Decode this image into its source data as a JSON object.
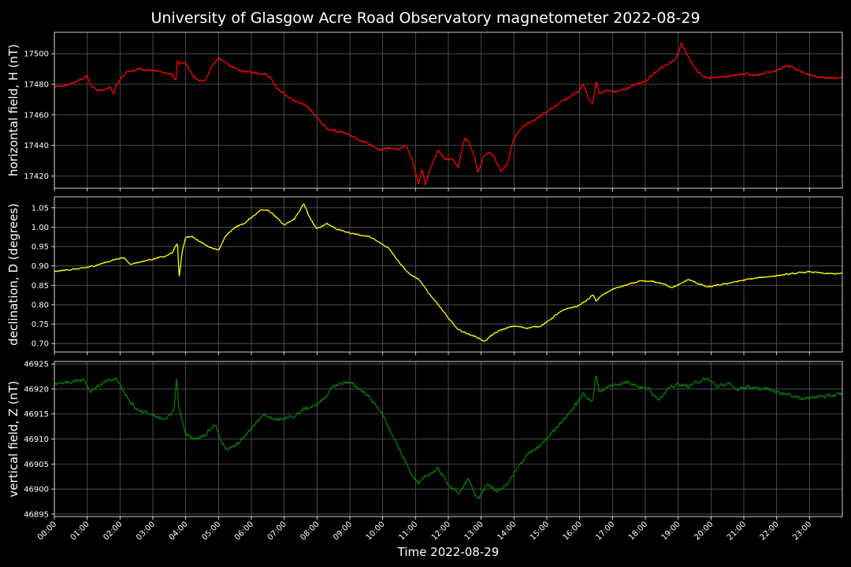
{
  "chart_data": {
    "type": "line",
    "title": "University of Glasgow Acre Road Observatory magnetometer 2022-08-29",
    "xlabel": "Time 2022-08-29",
    "x_ticks": [
      "00:00",
      "01:00",
      "02:00",
      "03:00",
      "04:00",
      "05:00",
      "06:00",
      "07:00",
      "08:00",
      "09:00",
      "10:00",
      "11:00",
      "12:00",
      "13:00",
      "14:00",
      "15:00",
      "16:00",
      "17:00",
      "18:00",
      "19:00",
      "20:00",
      "21:00",
      "22:00",
      "23:00"
    ],
    "xlim_hours": [
      0,
      24
    ],
    "grid": true,
    "panels": [
      {
        "name": "H",
        "ylabel": "horizontal field, H (nT)",
        "color": "#ff0000",
        "ylim": [
          17412,
          17514
        ],
        "yticks": [
          17420,
          17440,
          17460,
          17480,
          17500
        ],
        "tick_labels": [
          "17420",
          "17440",
          "17460",
          "17480",
          "17500"
        ],
        "noise": 1.2,
        "x": [
          0,
          0.3,
          0.6,
          0.9,
          1.0,
          1.1,
          1.3,
          1.5,
          1.7,
          1.8,
          1.9,
          2.2,
          2.6,
          3.0,
          3.3,
          3.6,
          3.7,
          3.75,
          3.8,
          4.0,
          4.2,
          4.4,
          4.6,
          4.8,
          5.0,
          5.3,
          5.6,
          6.0,
          6.4,
          6.6,
          6.8,
          7.1,
          7.4,
          7.7,
          8.0,
          8.3,
          8.7,
          9.0,
          9.3,
          9.6,
          9.9,
          10.2,
          10.5,
          10.7,
          10.9,
          11.1,
          11.2,
          11.3,
          11.5,
          11.7,
          11.9,
          12.1,
          12.3,
          12.5,
          12.6,
          12.8,
          12.9,
          13.1,
          13.3,
          13.4,
          13.6,
          13.8,
          14.0,
          14.3,
          14.6,
          14.9,
          15.2,
          15.5,
          15.8,
          16.0,
          16.1,
          16.3,
          16.4,
          16.5,
          16.6,
          16.8,
          17.1,
          17.4,
          17.7,
          18.0,
          18.3,
          18.6,
          18.9,
          19.0,
          19.1,
          19.3,
          19.6,
          19.9,
          20.2,
          20.5,
          20.8,
          21.1,
          21.4,
          21.7,
          22.0,
          22.3,
          22.6,
          22.9,
          23.2,
          23.6,
          24.0
        ],
        "values": [
          17478,
          17479,
          17481,
          17484,
          17486,
          17480,
          17476,
          17476,
          17478,
          17474,
          17480,
          17488,
          17490,
          17489,
          17488,
          17486,
          17482,
          17496,
          17493,
          17494,
          17486,
          17482,
          17483,
          17492,
          17497,
          17493,
          17489,
          17488,
          17487,
          17484,
          17477,
          17472,
          17468,
          17466,
          17458,
          17451,
          17449,
          17447,
          17443,
          17441,
          17437,
          17438,
          17437,
          17440,
          17431,
          17414,
          17425,
          17414,
          17428,
          17437,
          17430,
          17432,
          17426,
          17445,
          17443,
          17433,
          17422,
          17434,
          17435,
          17433,
          17423,
          17428,
          17445,
          17453,
          17456,
          17461,
          17465,
          17469,
          17473,
          17476,
          17480,
          17470,
          17467,
          17482,
          17474,
          17476,
          17475,
          17477,
          17480,
          17482,
          17488,
          17492,
          17496,
          17500,
          17507,
          17498,
          17488,
          17484,
          17485,
          17485,
          17486,
          17487,
          17486,
          17488,
          17489,
          17492,
          17490,
          17487,
          17485,
          17484,
          17484
        ]
      },
      {
        "name": "D",
        "ylabel": "declination, D (degrees)",
        "color": "#ffff00",
        "ylim": [
          0.678,
          1.078
        ],
        "yticks": [
          0.7,
          0.75,
          0.8,
          0.85,
          0.9,
          0.95,
          1.0,
          1.05
        ],
        "tick_labels": [
          "0.70",
          "0.75",
          "0.80",
          "0.85",
          "0.90",
          "0.95",
          "1.00",
          "1.05"
        ],
        "noise": 0.003,
        "x": [
          0,
          0.4,
          0.8,
          1.2,
          1.6,
          1.9,
          2.1,
          2.3,
          2.6,
          3.0,
          3.4,
          3.6,
          3.75,
          3.8,
          3.9,
          4.0,
          4.2,
          4.5,
          4.8,
          5.0,
          5.2,
          5.5,
          5.8,
          6.0,
          6.3,
          6.5,
          6.7,
          7.0,
          7.3,
          7.6,
          7.8,
          8.0,
          8.3,
          8.6,
          9.0,
          9.3,
          9.6,
          9.9,
          10.2,
          10.5,
          10.8,
          11.1,
          11.4,
          11.7,
          12.0,
          12.3,
          12.6,
          12.9,
          13.1,
          13.3,
          13.6,
          14.0,
          14.4,
          14.8,
          15.0,
          15.3,
          15.6,
          15.9,
          16.2,
          16.4,
          16.5,
          16.7,
          17.0,
          17.4,
          17.8,
          18.2,
          18.5,
          18.8,
          19.0,
          19.3,
          19.6,
          19.9,
          20.2,
          20.5,
          20.8,
          21.1,
          21.5,
          22.0,
          22.5,
          23.0,
          23.5,
          24.0
        ],
        "values": [
          0.885,
          0.89,
          0.893,
          0.9,
          0.91,
          0.918,
          0.922,
          0.905,
          0.91,
          0.918,
          0.925,
          0.935,
          0.96,
          0.87,
          0.94,
          0.975,
          0.975,
          0.96,
          0.945,
          0.94,
          0.975,
          1.0,
          1.01,
          1.025,
          1.045,
          1.045,
          1.03,
          1.005,
          1.02,
          1.06,
          1.02,
          0.995,
          1.01,
          0.995,
          0.985,
          0.98,
          0.975,
          0.96,
          0.945,
          0.91,
          0.88,
          0.865,
          0.83,
          0.8,
          0.765,
          0.735,
          0.725,
          0.715,
          0.705,
          0.72,
          0.735,
          0.745,
          0.74,
          0.745,
          0.755,
          0.775,
          0.79,
          0.795,
          0.81,
          0.825,
          0.81,
          0.825,
          0.84,
          0.85,
          0.86,
          0.86,
          0.855,
          0.845,
          0.85,
          0.865,
          0.855,
          0.845,
          0.85,
          0.855,
          0.86,
          0.865,
          0.87,
          0.875,
          0.88,
          0.885,
          0.88,
          0.88
        ]
      },
      {
        "name": "Z",
        "ylabel": "vertical field, Z (nT)",
        "color": "#008000",
        "ylim": [
          46894.5,
          46925.5
        ],
        "yticks": [
          46895,
          46900,
          46905,
          46910,
          46915,
          46920,
          46925
        ],
        "tick_labels": [
          "46895",
          "46900",
          "46905",
          "46910",
          "46915",
          "46920",
          "46925"
        ],
        "noise": 0.6,
        "x": [
          0,
          0.5,
          0.9,
          1.1,
          1.3,
          1.6,
          1.9,
          2.2,
          2.5,
          2.9,
          3.2,
          3.5,
          3.65,
          3.72,
          3.8,
          4.0,
          4.3,
          4.6,
          4.9,
          5.1,
          5.3,
          5.5,
          5.8,
          6.1,
          6.4,
          6.7,
          7.0,
          7.3,
          7.6,
          7.9,
          8.2,
          8.5,
          8.9,
          9.2,
          9.5,
          9.9,
          10.2,
          10.5,
          10.8,
          11.1,
          11.4,
          11.7,
          12.0,
          12.3,
          12.6,
          12.9,
          13.2,
          13.5,
          13.8,
          14.1,
          14.4,
          14.7,
          15.0,
          15.3,
          15.6,
          15.9,
          16.1,
          16.4,
          16.5,
          16.6,
          16.9,
          17.2,
          17.5,
          17.8,
          18.1,
          18.4,
          18.7,
          19.0,
          19.3,
          19.6,
          19.9,
          20.2,
          20.5,
          20.8,
          21.1,
          21.4,
          21.7,
          22.0,
          22.3,
          22.6,
          22.9,
          23.2,
          23.5,
          24.0
        ],
        "values": [
          46921,
          46921.5,
          46922,
          46919.5,
          46920.5,
          46921.5,
          46922,
          46918.5,
          46916,
          46915,
          46914,
          46914.5,
          46916,
          46922,
          46916,
          46911,
          46910,
          46911,
          46913,
          46909,
          46908,
          46908.5,
          46910.5,
          46913,
          46915,
          46914,
          46914,
          46914.5,
          46916,
          46916.5,
          46918,
          46920.5,
          46921.5,
          46920.5,
          46919,
          46916,
          46912,
          46908,
          46904,
          46901,
          46903,
          46904,
          46901,
          46899,
          46902,
          46898,
          46901,
          46899.5,
          46901,
          46904,
          46907,
          46908,
          46910,
          46912.5,
          46914.5,
          46917,
          46919,
          46917.5,
          46923,
          46919.5,
          46920.5,
          46921,
          46921.5,
          46920.5,
          46920,
          46918,
          46920,
          46921,
          46920.5,
          46921.5,
          46922,
          46920.5,
          46921,
          46920,
          46920.5,
          46920,
          46920,
          46919.5,
          46919,
          46918.5,
          46918,
          46918.5,
          46918.5,
          46919
        ]
      }
    ]
  }
}
